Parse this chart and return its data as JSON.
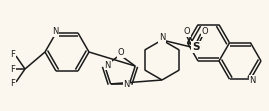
{
  "bg_color": "#fbf7ee",
  "line_color": "#1a1a1a",
  "lw": 1.1,
  "fs": 6.0,
  "figsize": [
    2.69,
    1.11
  ],
  "dpi": 100,
  "xlim": [
    0,
    269
  ],
  "ylim": [
    0,
    111
  ]
}
